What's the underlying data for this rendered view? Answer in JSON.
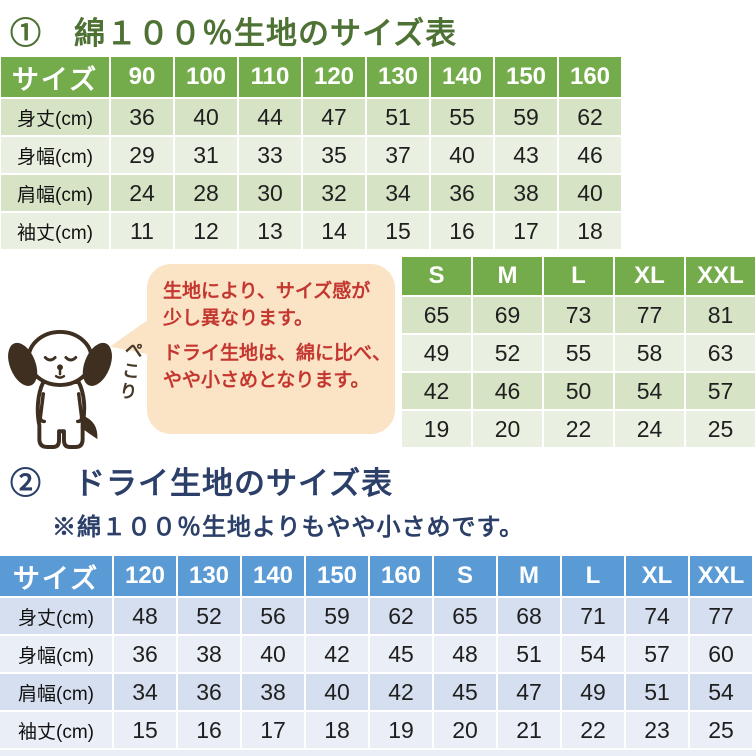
{
  "section1": {
    "title": "①　綿１００％生地のサイズ表",
    "table_cotton_kids": {
      "header": [
        "サイズ",
        "90",
        "100",
        "110",
        "120",
        "130",
        "140",
        "150",
        "160"
      ],
      "rows": [
        [
          "身丈(cm)",
          "36",
          "40",
          "44",
          "47",
          "51",
          "55",
          "59",
          "62"
        ],
        [
          "身幅(cm)",
          "29",
          "31",
          "33",
          "35",
          "37",
          "40",
          "43",
          "46"
        ],
        [
          "肩幅(cm)",
          "24",
          "28",
          "30",
          "32",
          "34",
          "36",
          "38",
          "40"
        ],
        [
          "袖丈(cm)",
          "11",
          "12",
          "13",
          "14",
          "15",
          "16",
          "17",
          "18"
        ]
      ]
    },
    "table_cotton_adult": {
      "header": [
        "S",
        "M",
        "L",
        "XL",
        "XXL"
      ],
      "rows": [
        [
          "65",
          "69",
          "73",
          "77",
          "81"
        ],
        [
          "49",
          "52",
          "55",
          "58",
          "63"
        ],
        [
          "42",
          "46",
          "50",
          "54",
          "57"
        ],
        [
          "19",
          "20",
          "22",
          "24",
          "25"
        ]
      ]
    }
  },
  "callout": {
    "line1": "生地により、サイズ感が",
    "line2": "少し異なります。",
    "line3": "ドライ生地は、綿に比べ、",
    "line4": "やや小さめとなります。",
    "dog_caption": "ぺこり"
  },
  "section2": {
    "title": "②　ドライ生地のサイズ表",
    "subtitle": "※綿１００％生地よりもやや小さめです。",
    "table_dry": {
      "header": [
        "サイズ",
        "120",
        "130",
        "140",
        "150",
        "160",
        "S",
        "M",
        "L",
        "XL",
        "XXL"
      ],
      "rows": [
        [
          "身丈(cm)",
          "48",
          "52",
          "56",
          "59",
          "62",
          "65",
          "68",
          "71",
          "74",
          "77"
        ],
        [
          "身幅(cm)",
          "36",
          "38",
          "40",
          "42",
          "45",
          "48",
          "51",
          "54",
          "57",
          "60"
        ],
        [
          "肩幅(cm)",
          "34",
          "36",
          "38",
          "40",
          "42",
          "45",
          "47",
          "49",
          "51",
          "54"
        ],
        [
          "袖丈(cm)",
          "15",
          "16",
          "17",
          "18",
          "19",
          "20",
          "21",
          "22",
          "23",
          "25"
        ]
      ]
    }
  },
  "colors": {
    "green_header": "#74AC4C",
    "green_band_dark": "#D6E3C5",
    "green_band_light": "#EAF0E1",
    "green_title_text": "#4E7134",
    "blue_header": "#5B9BD5",
    "blue_band_dark": "#D5DFEF",
    "blue_band_light": "#EAEEF6",
    "navy_title_text": "#2B3F69",
    "bubble_background": "#FBE3C5",
    "warning_red_text": "#C43730",
    "dog_ink": "#3F2F20"
  }
}
